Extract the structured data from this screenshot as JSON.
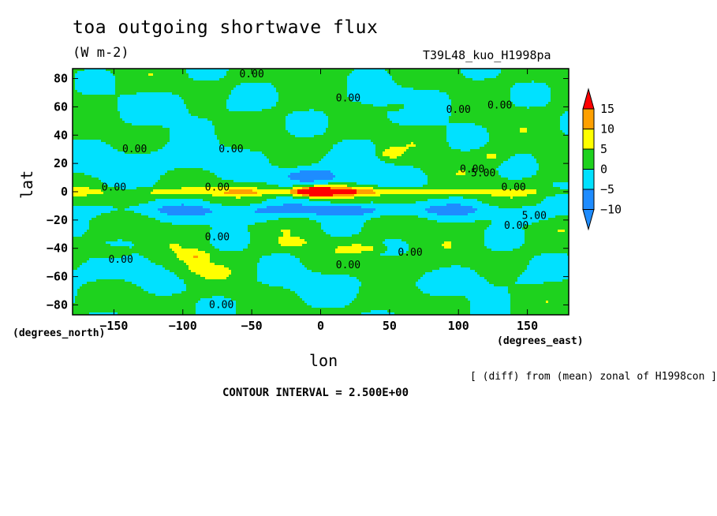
{
  "title": "toa outgoing shortwave flux",
  "units": "(W m-2)",
  "run_label": "T39L48_kuo_H1998pa",
  "x_units_label": "(degrees_east)",
  "y_units_label": "(degrees_north)",
  "x_axis_label": "lon",
  "y_axis_label": "lat",
  "note": "[ (diff) from (mean) zonal of H1998con ]",
  "contour_interval": "CONTOUR INTERVAL = 2.500E+00",
  "colors": {
    "lt_-10": "#1e8cff",
    "m10_m5": "#1e8cff",
    "m5_0": "#00e1ff",
    "0_5": "#1ed21e",
    "5_10": "#ffff00",
    "10_15": "#ffa000",
    "gt_15": "#ff0000"
  },
  "chart_data": {
    "type": "heatmap",
    "title": "toa outgoing shortwave flux",
    "xlabel": "lon",
    "ylabel": "lat",
    "xlim": [
      -180,
      180
    ],
    "ylim": [
      -87,
      87
    ],
    "x_ticks": [
      -150,
      -100,
      -50,
      0,
      50,
      100,
      150
    ],
    "y_ticks": [
      -80,
      -60,
      -40,
      -20,
      0,
      20,
      40,
      60,
      80
    ],
    "colorbar": {
      "levels": [
        -10,
        -5,
        0,
        5,
        10,
        15
      ],
      "labels": [
        "−10",
        "−5",
        "0",
        "5",
        "10",
        "15"
      ],
      "colors": [
        "#1e8cff",
        "#1e8cff",
        "#00e1ff",
        "#1ed21e",
        "#ffff00",
        "#ffa000",
        "#ff0000"
      ]
    },
    "contour_labels": [
      {
        "text": "0.00",
        "lon": -50,
        "lat": 83
      },
      {
        "text": "0.00",
        "lon": 20,
        "lat": 66
      },
      {
        "text": "0.00",
        "lon": 130,
        "lat": 61
      },
      {
        "text": "0.00",
        "lon": 100,
        "lat": 58
      },
      {
        "text": "0.00",
        "lon": -135,
        "lat": 30
      },
      {
        "text": "0.00",
        "lon": -65,
        "lat": 30
      },
      {
        "text": "0.00",
        "lon": 110,
        "lat": 16
      },
      {
        "text": "5.00",
        "lon": 118,
        "lat": 13
      },
      {
        "text": "0.00",
        "lon": -150,
        "lat": 3
      },
      {
        "text": "0.00",
        "lon": -75,
        "lat": 3
      },
      {
        "text": "0.00",
        "lon": 140,
        "lat": 3
      },
      {
        "text": "5.00",
        "lon": 155,
        "lat": -17
      },
      {
        "text": "0.00",
        "lon": 142,
        "lat": -24
      },
      {
        "text": "0.00",
        "lon": -75,
        "lat": -32
      },
      {
        "text": "0.00",
        "lon": 65,
        "lat": -43
      },
      {
        "text": "0.00",
        "lon": -145,
        "lat": -48
      },
      {
        "text": "0.00",
        "lon": 20,
        "lat": -52
      },
      {
        "text": "0.00",
        "lon": -72,
        "lat": -80
      }
    ]
  }
}
